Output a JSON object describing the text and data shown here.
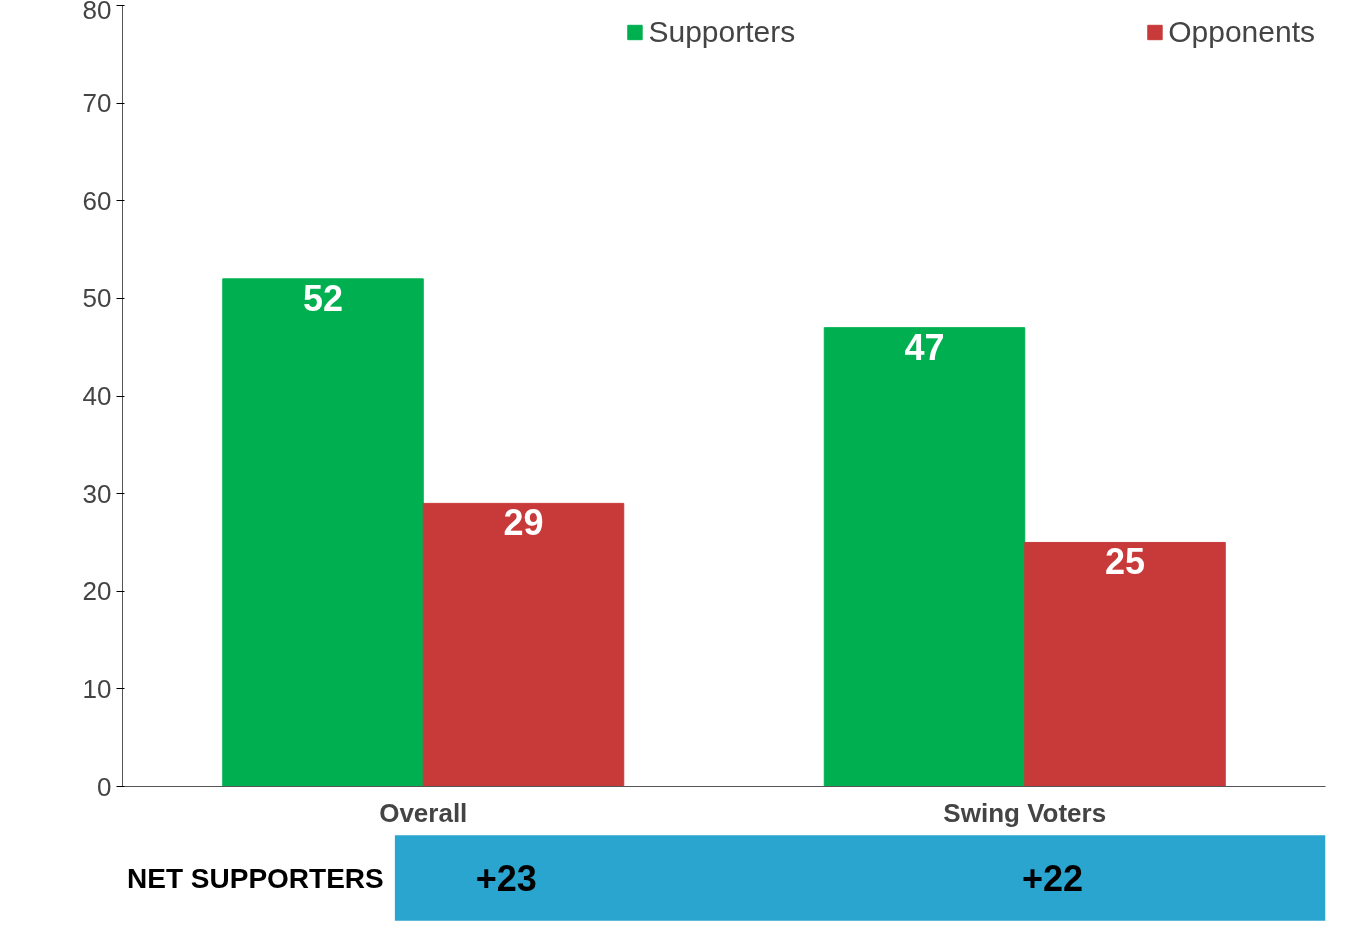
{
  "chart_data": {
    "type": "bar",
    "categories": [
      "Overall",
      "Swing Voters"
    ],
    "series": [
      {
        "name": "Supporters",
        "color": "#00b050",
        "values": [
          52,
          47
        ]
      },
      {
        "name": "Opponents",
        "color": "#c83a3a",
        "values": [
          29,
          25
        ]
      }
    ],
    "ylim": [
      0,
      80
    ],
    "yticks": [
      0,
      10,
      20,
      30,
      40,
      50,
      60,
      70,
      80
    ],
    "data_labels": true,
    "legend": "top",
    "grid": false,
    "annotations": [
      "NET SUPPORTERS",
      "+23",
      "+22"
    ]
  }
}
